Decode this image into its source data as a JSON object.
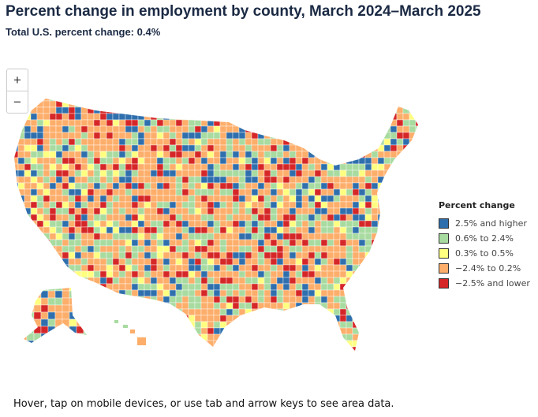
{
  "title": "Percent change in employment by county, March 2024–March 2025",
  "subtitle": "Total U.S. percent change: 0.4%",
  "zoom_controls": {
    "zoom_in": "+",
    "zoom_out": "−"
  },
  "legend": {
    "title": "Percent change",
    "items": [
      {
        "label": "2.5% and higher",
        "color": "#2f6fad"
      },
      {
        "label": "0.6% to 2.4%",
        "color": "#a8dba0"
      },
      {
        "label": "0.3% to 0.5%",
        "color": "#ffff80"
      },
      {
        "label": "−2.4% to 0.2%",
        "color": "#fdae6b"
      },
      {
        "label": "−2.5% and lower",
        "color": "#d62728"
      }
    ]
  },
  "note": "Hover, tap on mobile devices, or use tab and arrow keys to see area data."
}
